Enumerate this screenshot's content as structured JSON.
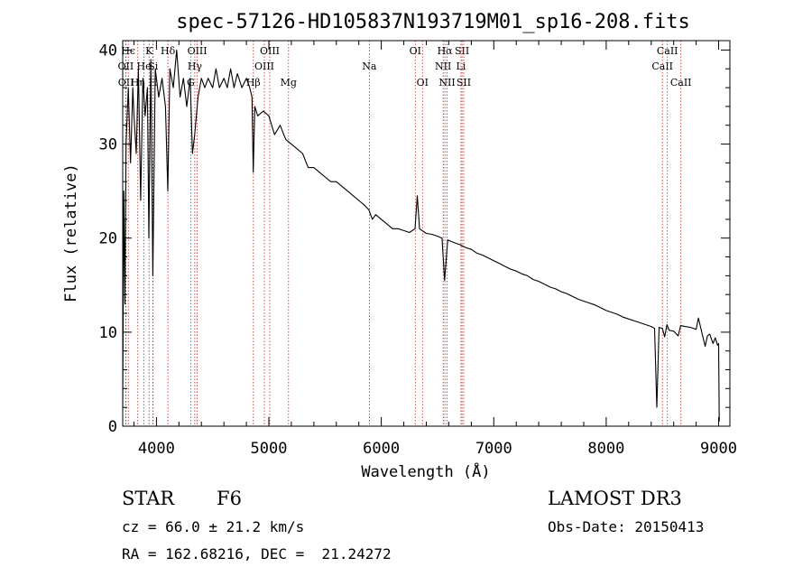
{
  "chart_data": {
    "type": "line",
    "title": "spec-57126-HD105837N193719M01_sp16-208.fits",
    "xlabel": "Wavelength (Å)",
    "ylabel": "Flux (relative)",
    "xlim": [
      3700,
      9100
    ],
    "ylim": [
      0,
      41
    ],
    "xticks": [
      4000,
      5000,
      6000,
      7000,
      8000,
      9000
    ],
    "yticks": [
      0,
      10,
      20,
      30,
      40
    ],
    "grid": false,
    "series": [
      {
        "color": "#000000",
        "points": [
          [
            3700,
            2
          ],
          [
            3710,
            25
          ],
          [
            3720,
            13
          ],
          [
            3730,
            30
          ],
          [
            3750,
            36
          ],
          [
            3770,
            28
          ],
          [
            3790,
            36
          ],
          [
            3800,
            33
          ],
          [
            3820,
            29
          ],
          [
            3840,
            38
          ],
          [
            3860,
            24
          ],
          [
            3880,
            37
          ],
          [
            3900,
            33
          ],
          [
            3920,
            36
          ],
          [
            3933,
            20
          ],
          [
            3950,
            39
          ],
          [
            3968,
            16
          ],
          [
            3990,
            38
          ],
          [
            4020,
            35
          ],
          [
            4050,
            37
          ],
          [
            4080,
            34
          ],
          [
            4101,
            25
          ],
          [
            4120,
            38
          ],
          [
            4150,
            36
          ],
          [
            4180,
            40
          ],
          [
            4210,
            35
          ],
          [
            4240,
            37
          ],
          [
            4270,
            34
          ],
          [
            4300,
            37
          ],
          [
            4320,
            29
          ],
          [
            4340,
            31
          ],
          [
            4370,
            35
          ],
          [
            4400,
            37
          ],
          [
            4430,
            36
          ],
          [
            4460,
            37
          ],
          [
            4500,
            36
          ],
          [
            4530,
            38
          ],
          [
            4560,
            36
          ],
          [
            4600,
            37
          ],
          [
            4630,
            36
          ],
          [
            4660,
            38
          ],
          [
            4690,
            36
          ],
          [
            4720,
            37.5
          ],
          [
            4760,
            36
          ],
          [
            4800,
            37
          ],
          [
            4830,
            36
          ],
          [
            4850,
            35
          ],
          [
            4861,
            27
          ],
          [
            4875,
            34
          ],
          [
            4900,
            33
          ],
          [
            4950,
            33.5
          ],
          [
            5000,
            33
          ],
          [
            5050,
            31
          ],
          [
            5100,
            32
          ],
          [
            5150,
            30.5
          ],
          [
            5200,
            30
          ],
          [
            5250,
            29.5
          ],
          [
            5300,
            29
          ],
          [
            5350,
            27.5
          ],
          [
            5400,
            27.5
          ],
          [
            5450,
            27
          ],
          [
            5500,
            26.5
          ],
          [
            5550,
            26
          ],
          [
            5600,
            26
          ],
          [
            5650,
            25.5
          ],
          [
            5700,
            25
          ],
          [
            5750,
            24.5
          ],
          [
            5800,
            24
          ],
          [
            5850,
            23.5
          ],
          [
            5890,
            23
          ],
          [
            5920,
            22
          ],
          [
            5950,
            22.5
          ],
          [
            6000,
            22
          ],
          [
            6050,
            21.5
          ],
          [
            6100,
            21
          ],
          [
            6150,
            21
          ],
          [
            6200,
            20.8
          ],
          [
            6250,
            20.6
          ],
          [
            6300,
            21
          ],
          [
            6320,
            24.5
          ],
          [
            6340,
            21
          ],
          [
            6400,
            20.5
          ],
          [
            6450,
            20.4
          ],
          [
            6500,
            20.2
          ],
          [
            6540,
            20
          ],
          [
            6563,
            15.5
          ],
          [
            6590,
            19.8
          ],
          [
            6650,
            19.5
          ],
          [
            6700,
            19.3
          ],
          [
            6750,
            19
          ],
          [
            6800,
            18.8
          ],
          [
            6850,
            18.4
          ],
          [
            6900,
            18.2
          ],
          [
            6950,
            17.9
          ],
          [
            7000,
            17.6
          ],
          [
            7050,
            17.3
          ],
          [
            7100,
            17
          ],
          [
            7150,
            16.7
          ],
          [
            7200,
            16.5
          ],
          [
            7250,
            16.2
          ],
          [
            7300,
            16
          ],
          [
            7350,
            15.6
          ],
          [
            7400,
            15.4
          ],
          [
            7450,
            15.1
          ],
          [
            7500,
            14.8
          ],
          [
            7550,
            14.6
          ],
          [
            7600,
            14.3
          ],
          [
            7650,
            14.1
          ],
          [
            7700,
            13.8
          ],
          [
            7750,
            13.5
          ],
          [
            7800,
            13.3
          ],
          [
            7850,
            13.1
          ],
          [
            7900,
            12.9
          ],
          [
            7950,
            12.6
          ],
          [
            8000,
            12.3
          ],
          [
            8050,
            12.1
          ],
          [
            8100,
            11.9
          ],
          [
            8150,
            11.6
          ],
          [
            8200,
            11.4
          ],
          [
            8250,
            11.2
          ],
          [
            8300,
            11
          ],
          [
            8350,
            10.8
          ],
          [
            8400,
            10.6
          ],
          [
            8430,
            10.4
          ],
          [
            8450,
            2
          ],
          [
            8470,
            10.5
          ],
          [
            8500,
            10.4
          ],
          [
            8520,
            9.5
          ],
          [
            8540,
            10.8
          ],
          [
            8560,
            10.2
          ],
          [
            8600,
            10.1
          ],
          [
            8640,
            9.6
          ],
          [
            8662,
            10.7
          ],
          [
            8700,
            10.6
          ],
          [
            8750,
            10.5
          ],
          [
            8800,
            10.3
          ],
          [
            8820,
            11.5
          ],
          [
            8850,
            10
          ],
          [
            8880,
            8.5
          ],
          [
            8900,
            9.6
          ],
          [
            8920,
            9.8
          ],
          [
            8950,
            8.8
          ],
          [
            8970,
            9.4
          ],
          [
            8990,
            8.6
          ],
          [
            9000,
            8.8
          ],
          [
            9005,
            0.5
          ]
        ]
      }
    ],
    "line_markers": [
      {
        "label": "Hϵ",
        "wavelength": 3750,
        "row": 0
      },
      {
        "label": "OII",
        "wavelength": 3727,
        "row": 1
      },
      {
        "label": "OII",
        "wavelength": 3729,
        "row": 2
      },
      {
        "label": "Hη",
        "wavelength": 3835,
        "row": 2
      },
      {
        "label": "He",
        "wavelength": 3889,
        "row": 1
      },
      {
        "label": "K",
        "wavelength": 3934,
        "row": 0
      },
      {
        "label": "H",
        "wavelength": 3969,
        "row": 2
      },
      {
        "label": "Si",
        "wavelength": 3970,
        "row": 1
      },
      {
        "label": "Hδ",
        "wavelength": 4102,
        "row": 0
      },
      {
        "label": "Hγ",
        "wavelength": 4341,
        "row": 1
      },
      {
        "label": "G",
        "wavelength": 4305,
        "row": 2
      },
      {
        "label": "OIII",
        "wavelength": 4363,
        "row": 0
      },
      {
        "label": "Hβ",
        "wavelength": 4862,
        "row": 2
      },
      {
        "label": "OIII",
        "wavelength": 4960,
        "row": 1
      },
      {
        "label": "OIII",
        "wavelength": 5008,
        "row": 0
      },
      {
        "label": "Mg",
        "wavelength": 5175,
        "row": 2
      },
      {
        "label": "Na",
        "wavelength": 5894,
        "row": 1
      },
      {
        "label": "OI",
        "wavelength": 6302,
        "row": 0
      },
      {
        "label": "OI",
        "wavelength": 6366,
        "row": 2
      },
      {
        "label": "NII",
        "wavelength": 6550,
        "row": 1
      },
      {
        "label": "Hα",
        "wavelength": 6565,
        "row": 0
      },
      {
        "label": "NII",
        "wavelength": 6585,
        "row": 2
      },
      {
        "label": "SII",
        "wavelength": 6718,
        "row": 0
      },
      {
        "label": "Li",
        "wavelength": 6708,
        "row": 1
      },
      {
        "label": "SII",
        "wavelength": 6733,
        "row": 2
      },
      {
        "label": "CaII",
        "wavelength": 8500,
        "row": 1
      },
      {
        "label": "CaII",
        "wavelength": 8544,
        "row": 0
      },
      {
        "label": "CaII",
        "wavelength": 8664,
        "row": 2
      }
    ],
    "colors": {
      "spectrum": "#000000",
      "marker": "#cc2222"
    }
  },
  "info": {
    "object_class": "STAR",
    "subclass": "F6",
    "survey": "LAMOST DR3",
    "cz": "cz = 66.0 ± 21.2 km/s",
    "obs_date": "Obs-Date: 20150413",
    "coords": "RA = 162.68216, DEC =  21.24272"
  }
}
